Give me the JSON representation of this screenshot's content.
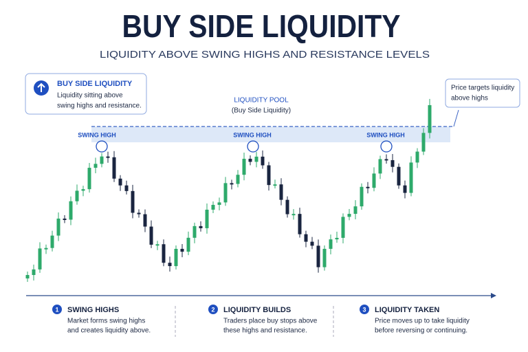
{
  "header": {
    "title": "BUY SIDE LIQUIDITY",
    "subtitle": "LIQUIDITY ABOVE SWING HIGHS AND RESISTANCE LEVELS"
  },
  "callout": {
    "title": "BUY SIDE LIQUIDITY",
    "lines": [
      "Liquidity sitting above",
      "swing highs and resistance."
    ]
  },
  "pool": {
    "title": "LIQUIDITY POOL",
    "subtitle": "(Buy Side Liquidity)"
  },
  "swing_labels": [
    "SWING HIGH",
    "SWING HIGH",
    "SWING HIGH"
  ],
  "target_note": [
    "Price targets liquidity",
    "above highs"
  ],
  "steps": [
    {
      "number": "1",
      "title": "SWING HIGHS",
      "lines": [
        "Market forms swing highs",
        "and creates liquidity above."
      ]
    },
    {
      "number": "2",
      "title": "LIQUIDITY BUILDS",
      "lines": [
        "Traders place buy stops above",
        "these highs and resistance."
      ]
    },
    {
      "number": "3",
      "title": "LIQUIDITY TAKEN",
      "lines": [
        "Price moves up to take liquidity",
        "before reversing or continuing."
      ]
    }
  ]
}
